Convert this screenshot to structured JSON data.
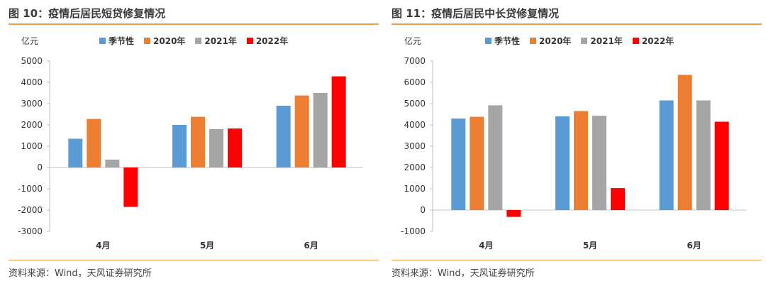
{
  "figures": [
    {
      "title": "图 10：疫情后居民短贷修复情况",
      "source": "资料来源：Wind，天风证券研究所",
      "unit": "亿元",
      "chart_data": {
        "type": "bar",
        "categories": [
          "4月",
          "5月",
          "6月"
        ],
        "ylim": [
          -3000,
          5000
        ],
        "yticks": [
          -3000,
          -2000,
          -1000,
          0,
          1000,
          2000,
          3000,
          4000,
          5000
        ],
        "series": [
          {
            "name": "季节性",
            "color": "#5b9bd5",
            "values": [
              1350,
              2000,
              2900
            ]
          },
          {
            "name": "2020年",
            "color": "#ed7d31",
            "values": [
              2280,
              2380,
              3380
            ]
          },
          {
            "name": "2021年",
            "color": "#a5a5a5",
            "values": [
              370,
              1800,
              3500
            ]
          },
          {
            "name": "2022年",
            "color": "#ff0000",
            "values": [
              -1850,
              1830,
              4280
            ]
          }
        ],
        "legend_position": "top",
        "grid": false
      }
    },
    {
      "title": "图 11：疫情后居民中长贷修复情况",
      "source": "资料来源：Wind，天风证券研究所",
      "unit": "亿元",
      "chart_data": {
        "type": "bar",
        "categories": [
          "4月",
          "5月",
          "6月"
        ],
        "ylim": [
          -1000,
          7000
        ],
        "yticks": [
          -1000,
          0,
          1000,
          2000,
          3000,
          4000,
          5000,
          6000,
          7000
        ],
        "series": [
          {
            "name": "季节性",
            "color": "#5b9bd5",
            "values": [
              4300,
              4400,
              5150
            ]
          },
          {
            "name": "2020年",
            "color": "#ed7d31",
            "values": [
              4380,
              4650,
              6350
            ]
          },
          {
            "name": "2021年",
            "color": "#a5a5a5",
            "values": [
              4920,
              4430,
              5150
            ]
          },
          {
            "name": "2022年",
            "color": "#ff0000",
            "values": [
              -320,
              1030,
              4150
            ]
          }
        ],
        "legend_position": "top",
        "grid": false
      }
    }
  ]
}
